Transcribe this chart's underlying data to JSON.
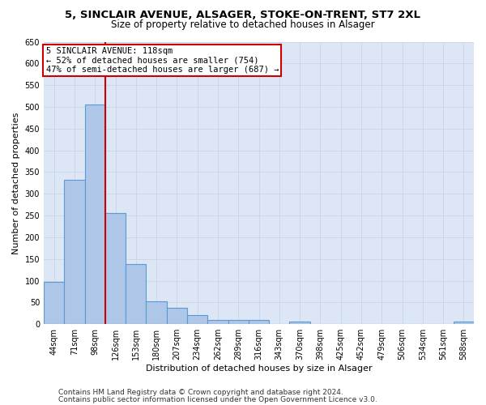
{
  "title1": "5, SINCLAIR AVENUE, ALSAGER, STOKE-ON-TRENT, ST7 2XL",
  "title2": "Size of property relative to detached houses in Alsager",
  "xlabel": "Distribution of detached houses by size in Alsager",
  "ylabel": "Number of detached properties",
  "categories": [
    "44sqm",
    "71sqm",
    "98sqm",
    "126sqm",
    "153sqm",
    "180sqm",
    "207sqm",
    "234sqm",
    "262sqm",
    "289sqm",
    "316sqm",
    "343sqm",
    "370sqm",
    "398sqm",
    "425sqm",
    "452sqm",
    "479sqm",
    "506sqm",
    "534sqm",
    "561sqm",
    "588sqm"
  ],
  "values": [
    97,
    333,
    505,
    255,
    138,
    53,
    37,
    21,
    10,
    10,
    10,
    0,
    6,
    0,
    0,
    0,
    0,
    0,
    0,
    0,
    6
  ],
  "bar_color": "#aec6e8",
  "bar_edge_color": "#5b9bd5",
  "vline_x": 2.5,
  "vline_color": "#cc0000",
  "annotation_text": "5 SINCLAIR AVENUE: 118sqm\n← 52% of detached houses are smaller (754)\n47% of semi-detached houses are larger (687) →",
  "annotation_box_color": "#ffffff",
  "annotation_box_edge": "#cc0000",
  "ylim": [
    0,
    650
  ],
  "yticks": [
    0,
    50,
    100,
    150,
    200,
    250,
    300,
    350,
    400,
    450,
    500,
    550,
    600,
    650
  ],
  "grid_color": "#c8d4e8",
  "bg_color": "#dce6f5",
  "footer1": "Contains HM Land Registry data © Crown copyright and database right 2024.",
  "footer2": "Contains public sector information licensed under the Open Government Licence v3.0.",
  "title1_fontsize": 9.5,
  "title2_fontsize": 8.5,
  "xlabel_fontsize": 8,
  "ylabel_fontsize": 8,
  "tick_fontsize": 7,
  "footer_fontsize": 6.5
}
